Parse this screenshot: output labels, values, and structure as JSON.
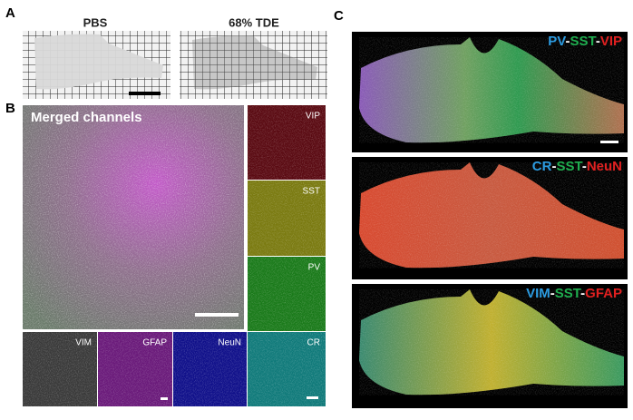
{
  "figure": {
    "a": {
      "label": "A",
      "images": [
        "PBS",
        "68% TDE"
      ]
    },
    "b": {
      "label": "B",
      "merged": "Merged channels",
      "channels": [
        "VIP",
        "SST",
        "PV",
        "VIM",
        "GFAP",
        "NeuN",
        "CR"
      ]
    },
    "c": {
      "label": "C",
      "images": [
        [
          {
            "text": "PV",
            "color": "#2c9be0"
          },
          {
            "text": "-",
            "color": "#ffffff"
          },
          {
            "text": "SST",
            "color": "#1fae4f"
          },
          {
            "text": "-",
            "color": "#ffffff"
          },
          {
            "text": "VIP",
            "color": "#e02020"
          }
        ],
        [
          {
            "text": "CR",
            "color": "#2c9be0"
          },
          {
            "text": "-",
            "color": "#ffffff"
          },
          {
            "text": "SST",
            "color": "#1fae4f"
          },
          {
            "text": "-",
            "color": "#ffffff"
          },
          {
            "text": "NeuN",
            "color": "#e02020"
          }
        ],
        [
          {
            "text": "VIM",
            "color": "#2c9be0"
          },
          {
            "text": "-",
            "color": "#ffffff"
          },
          {
            "text": "SST",
            "color": "#1fae4f"
          },
          {
            "text": "-",
            "color": "#ffffff"
          },
          {
            "text": "GFAP",
            "color": "#e02020"
          }
        ]
      ]
    }
  }
}
